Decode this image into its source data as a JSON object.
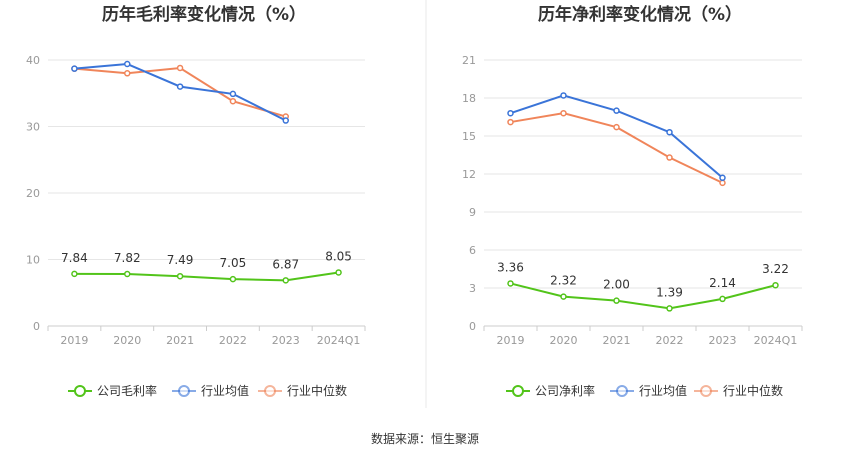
{
  "colors": {
    "company": "#52c41a",
    "industry_avg": "#3a74d8",
    "industry_median": "#f0855a",
    "grid": "#e6e6e6",
    "axis": "#cccccc",
    "divider": "#e8e8e8"
  },
  "source": "数据来源：恒生聚源",
  "chart_data": [
    {
      "type": "line",
      "title": "历年毛利率变化情况（%）",
      "categories": [
        "2019",
        "2020",
        "2021",
        "2022",
        "2023",
        "2024Q1"
      ],
      "ylim": [
        0,
        40
      ],
      "yticks": [
        0,
        10,
        20,
        30,
        40
      ],
      "grid": true,
      "legend_position": "bottom",
      "series": [
        {
          "name": "公司毛利率",
          "key": "company",
          "values": [
            7.84,
            7.82,
            7.49,
            7.05,
            6.87,
            8.05
          ],
          "labels": [
            "7.84",
            "7.82",
            "7.49",
            "7.05",
            "6.87",
            "8.05"
          ]
        },
        {
          "name": "行业均值",
          "key": "industry_avg",
          "values": [
            38.7,
            39.4,
            36.0,
            34.9,
            30.9,
            null
          ]
        },
        {
          "name": "行业中位数",
          "key": "industry_median",
          "values": [
            38.7,
            38.0,
            38.8,
            33.8,
            31.5,
            null
          ]
        }
      ]
    },
    {
      "type": "line",
      "title": "历年净利率变化情况（%）",
      "categories": [
        "2019",
        "2020",
        "2021",
        "2022",
        "2023",
        "2024Q1"
      ],
      "ylim": [
        0,
        21
      ],
      "yticks": [
        0,
        3,
        6,
        9,
        12,
        15,
        18,
        21
      ],
      "grid": true,
      "legend_position": "bottom",
      "series": [
        {
          "name": "公司净利率",
          "key": "company",
          "values": [
            3.36,
            2.32,
            2.0,
            1.39,
            2.14,
            3.22
          ],
          "labels": [
            "3.36",
            "2.32",
            "2.00",
            "1.39",
            "2.14",
            "3.22"
          ]
        },
        {
          "name": "行业均值",
          "key": "industry_avg",
          "values": [
            16.8,
            18.2,
            17.0,
            15.3,
            11.7,
            null
          ]
        },
        {
          "name": "行业中位数",
          "key": "industry_median",
          "values": [
            16.1,
            16.8,
            15.7,
            13.3,
            11.3,
            null
          ]
        }
      ]
    }
  ]
}
